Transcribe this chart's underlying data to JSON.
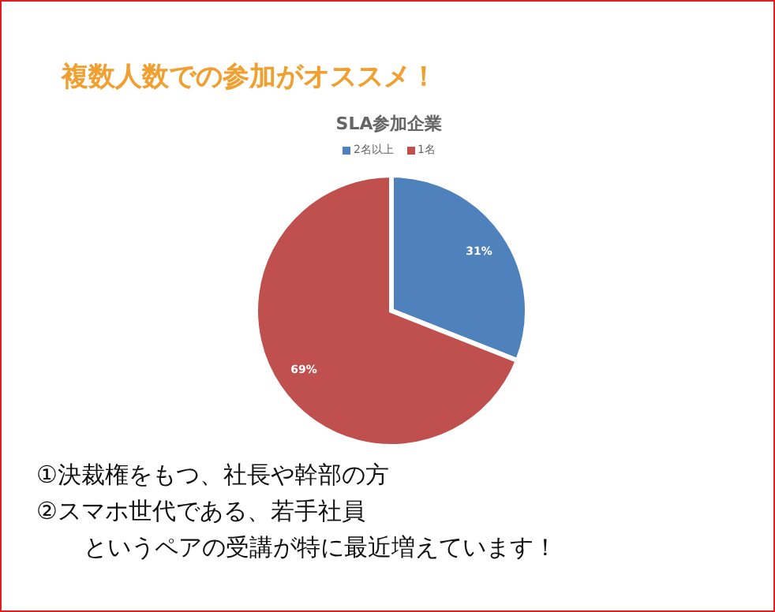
{
  "chart_data": {
    "type": "pie",
    "title": "SLA参加企業",
    "categories": [
      "2名以上",
      "1名"
    ],
    "values": [
      31,
      69
    ],
    "value_labels": [
      "31%",
      "69%"
    ],
    "colors": [
      "#4f81bd",
      "#c0504d"
    ],
    "legend": "top",
    "annotations": [
      "複数人数での参加がオススメ！",
      "①決裁権をもつ、社長や幹部の方",
      "②スマホ世代である、若手社員",
      "　　というペアの受講が特に最近増えています！"
    ]
  }
}
